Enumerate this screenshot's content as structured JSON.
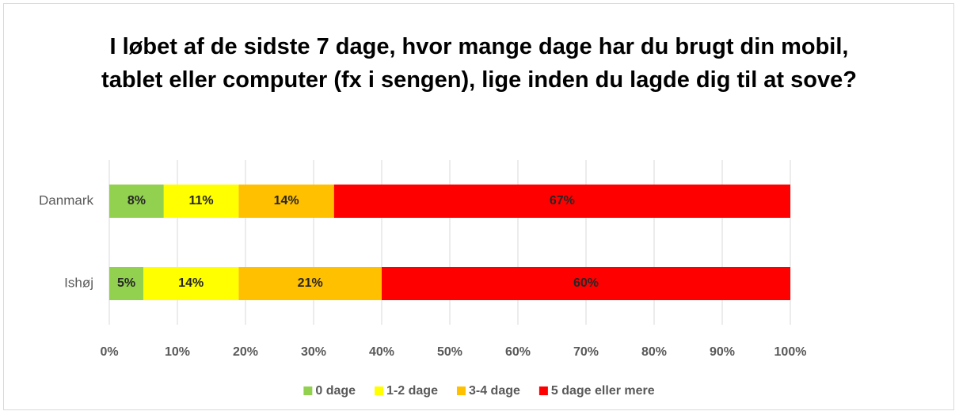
{
  "chart_data": {
    "type": "stacked_barh",
    "title": "I løbet af de sidste 7 dage, hvor mange dage har du brugt din mobil, tablet eller computer (fx i sengen), lige inden du lagde dig til at sove?",
    "categories": [
      "Danmark",
      "Ishøj"
    ],
    "series": [
      {
        "name": "0 dage",
        "color": "#92d050",
        "values": [
          8,
          5
        ],
        "value_labels": [
          "8%",
          "5%"
        ]
      },
      {
        "name": "1-2 dage",
        "color": "#ffff00",
        "values": [
          11,
          14
        ],
        "value_labels": [
          "11%",
          "14%"
        ]
      },
      {
        "name": "3-4 dage",
        "color": "#ffc000",
        "values": [
          14,
          21
        ],
        "value_labels": [
          "14%",
          "21%"
        ]
      },
      {
        "name": "5 dage eller mere",
        "color": "#ff0000",
        "values": [
          67,
          60
        ],
        "value_labels": [
          "67%",
          "60%"
        ]
      }
    ],
    "xlim": [
      0,
      100
    ],
    "xticks": [
      {
        "value": 0,
        "label": "0%"
      },
      {
        "value": 10,
        "label": "10%"
      },
      {
        "value": 20,
        "label": "20%"
      },
      {
        "value": 30,
        "label": "30%"
      },
      {
        "value": 40,
        "label": "40%"
      },
      {
        "value": 50,
        "label": "50%"
      },
      {
        "value": 60,
        "label": "60%"
      },
      {
        "value": 70,
        "label": "70%"
      },
      {
        "value": 80,
        "label": "80%"
      },
      {
        "value": 90,
        "label": "90%"
      },
      {
        "value": 100,
        "label": "100%"
      }
    ],
    "grid": true,
    "legend": "bottom"
  }
}
